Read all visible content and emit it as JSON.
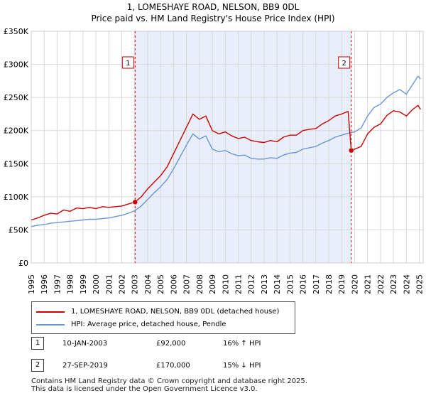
{
  "chart_data": {
    "type": "line",
    "title": "1, LOMESHAYE ROAD, NELSON, BB9 0DL",
    "subtitle": "Price paid vs. HM Land Registry's House Price Index (HPI)",
    "xlim": [
      1995,
      2025.3
    ],
    "ylim": [
      0,
      350000
    ],
    "y_ticks": [
      0,
      50000,
      100000,
      150000,
      200000,
      250000,
      300000,
      350000
    ],
    "y_tick_labels": [
      "£0",
      "£50K",
      "£100K",
      "£150K",
      "£200K",
      "£250K",
      "£300K",
      "£350K"
    ],
    "x_ticks": [
      1995,
      1996,
      1997,
      1998,
      1999,
      2000,
      2001,
      2002,
      2003,
      2004,
      2005,
      2006,
      2007,
      2008,
      2009,
      2010,
      2011,
      2012,
      2013,
      2014,
      2015,
      2016,
      2017,
      2018,
      2019,
      2020,
      2021,
      2022,
      2023,
      2024,
      2025
    ],
    "x_tick_labels": [
      "1995",
      "1996",
      "1997",
      "1998",
      "1999",
      "2000",
      "2001",
      "2002",
      "2003",
      "2004",
      "2005",
      "2006",
      "2007",
      "2008",
      "2009",
      "2010",
      "2011",
      "2012",
      "2013",
      "2014",
      "2015",
      "2016",
      "2017",
      "2018",
      "2019",
      "2020",
      "2021",
      "2022",
      "2023",
      "2024",
      "2025"
    ],
    "grid": true,
    "shaded_span": [
      2003.03,
      2019.74
    ],
    "series": [
      {
        "name": "1, LOMESHAYE ROAD, NELSON, BB9 0DL (detached house)",
        "color": "#cc0000",
        "x": [
          1995.0,
          1995.5,
          1996.0,
          1996.5,
          1997.0,
          1997.5,
          1998.0,
          1998.5,
          1999.0,
          1999.5,
          2000.0,
          2000.5,
          2001.0,
          2001.5,
          2002.0,
          2002.5,
          2003.03,
          2003.5,
          2004.0,
          2004.5,
          2005.0,
          2005.5,
          2006.0,
          2006.5,
          2007.0,
          2007.5,
          2008.0,
          2008.5,
          2009.0,
          2009.5,
          2010.0,
          2010.5,
          2011.0,
          2011.5,
          2012.0,
          2012.5,
          2013.0,
          2013.5,
          2014.0,
          2014.5,
          2015.0,
          2015.5,
          2016.0,
          2016.5,
          2017.0,
          2017.5,
          2018.0,
          2018.5,
          2019.0,
          2019.5,
          2019.74,
          2020.0,
          2020.5,
          2021.0,
          2021.5,
          2022.0,
          2022.5,
          2023.0,
          2023.5,
          2024.0,
          2024.5,
          2024.9,
          2025.1
        ],
        "values": [
          65000,
          68000,
          72000,
          75000,
          74000,
          80000,
          78000,
          83000,
          82000,
          84000,
          82000,
          85000,
          84000,
          85000,
          86000,
          89000,
          92000,
          100000,
          112000,
          122000,
          132000,
          145000,
          165000,
          185000,
          205000,
          225000,
          217000,
          222000,
          200000,
          195000,
          198000,
          192000,
          188000,
          190000,
          185000,
          183000,
          182000,
          185000,
          183000,
          190000,
          193000,
          193000,
          200000,
          202000,
          203000,
          210000,
          215000,
          222000,
          225000,
          229000,
          170000,
          172000,
          176000,
          195000,
          205000,
          210000,
          223000,
          230000,
          228000,
          222000,
          232000,
          238000,
          232000
        ]
      },
      {
        "name": "HPI: Average price, detached house, Pendle",
        "color": "#6a96d4",
        "x": [
          1995.0,
          1995.5,
          1996.0,
          1996.5,
          1997.0,
          1997.5,
          1998.0,
          1998.5,
          1999.0,
          1999.5,
          2000.0,
          2000.5,
          2001.0,
          2001.5,
          2002.0,
          2002.5,
          2003.0,
          2003.5,
          2004.0,
          2004.5,
          2005.0,
          2005.5,
          2006.0,
          2006.5,
          2007.0,
          2007.5,
          2008.0,
          2008.5,
          2009.0,
          2009.5,
          2010.0,
          2010.5,
          2011.0,
          2011.5,
          2012.0,
          2012.5,
          2013.0,
          2013.5,
          2014.0,
          2014.5,
          2015.0,
          2015.5,
          2016.0,
          2016.5,
          2017.0,
          2017.5,
          2018.0,
          2018.5,
          2019.0,
          2019.5,
          2020.0,
          2020.5,
          2021.0,
          2021.5,
          2022.0,
          2022.5,
          2023.0,
          2023.5,
          2024.0,
          2024.5,
          2024.9,
          2025.1
        ],
        "values": [
          55000,
          57000,
          58000,
          60000,
          61000,
          62000,
          63000,
          64000,
          65000,
          66000,
          66000,
          67000,
          68000,
          70000,
          72000,
          75000,
          79000,
          86000,
          96000,
          106000,
          115000,
          126000,
          142000,
          160000,
          178000,
          195000,
          187000,
          192000,
          172000,
          168000,
          170000,
          165000,
          162000,
          163000,
          158000,
          157000,
          157000,
          159000,
          158000,
          163000,
          166000,
          167000,
          172000,
          174000,
          176000,
          181000,
          185000,
          190000,
          193000,
          196000,
          198000,
          204000,
          222000,
          235000,
          240000,
          250000,
          257000,
          262000,
          255000,
          270000,
          282000,
          278000
        ]
      }
    ],
    "annotations": [
      {
        "label": "1",
        "x": 2003.03,
        "value": 92000
      },
      {
        "label": "2",
        "x": 2019.74,
        "value": 170000
      }
    ]
  },
  "legend": {
    "items": [
      {
        "label": "1, LOMESHAYE ROAD, NELSON, BB9 0DL (detached house)",
        "color": "#cc0000"
      },
      {
        "label": "HPI: Average price, detached house, Pendle",
        "color": "#6a96d4"
      }
    ]
  },
  "transactions": [
    {
      "num": "1",
      "date": "10-JAN-2003",
      "price": "£92,000",
      "hpi": "16% ↑ HPI"
    },
    {
      "num": "2",
      "date": "27-SEP-2019",
      "price": "£170,000",
      "hpi": "15% ↓ HPI"
    }
  ],
  "footer": {
    "line1": "Contains HM Land Registry data © Crown copyright and database right 2025.",
    "line2": "This data is licensed under the Open Government Licence v3.0."
  }
}
